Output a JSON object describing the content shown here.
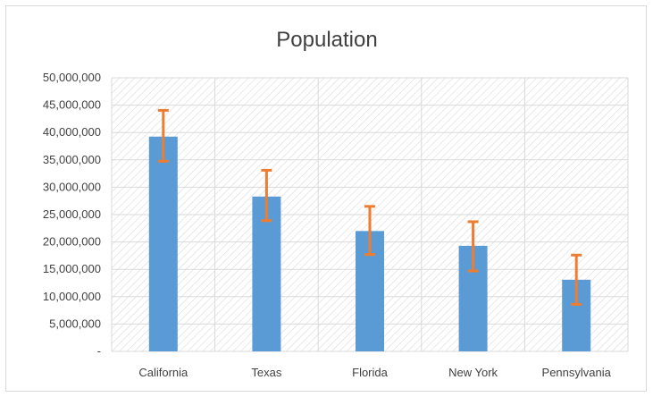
{
  "chart_data": {
    "type": "bar",
    "title": "Population",
    "xlabel": "",
    "ylabel": "",
    "categories": [
      "California",
      "Texas",
      "Florida",
      "New York",
      "Pennsylvania"
    ],
    "values": [
      39250000,
      28300000,
      22000000,
      19300000,
      13100000
    ],
    "error_bars": {
      "plus": [
        4800000,
        4800000,
        4500000,
        4400000,
        4500000
      ],
      "minus": [
        4500000,
        4400000,
        4300000,
        4600000,
        4500000
      ]
    },
    "ylim": [
      0,
      50000000
    ],
    "yticks": [
      0,
      5000000,
      10000000,
      15000000,
      20000000,
      25000000,
      30000000,
      35000000,
      40000000,
      45000000,
      50000000
    ],
    "ytick_labels": [
      "-",
      "5,000,000",
      "10,000,000",
      "15,000,000",
      "20,000,000",
      "25,000,000",
      "30,000,000",
      "35,000,000",
      "40,000,000",
      "45,000,000",
      "50,000,000"
    ],
    "grid": true,
    "plot_background": "diagonal-hatch",
    "colors": {
      "bar": "#5b9bd5",
      "error_bar": "#ed7d31",
      "grid": "#d9d9d9",
      "hatch": "#d9d9d9",
      "text": "#404040"
    }
  }
}
